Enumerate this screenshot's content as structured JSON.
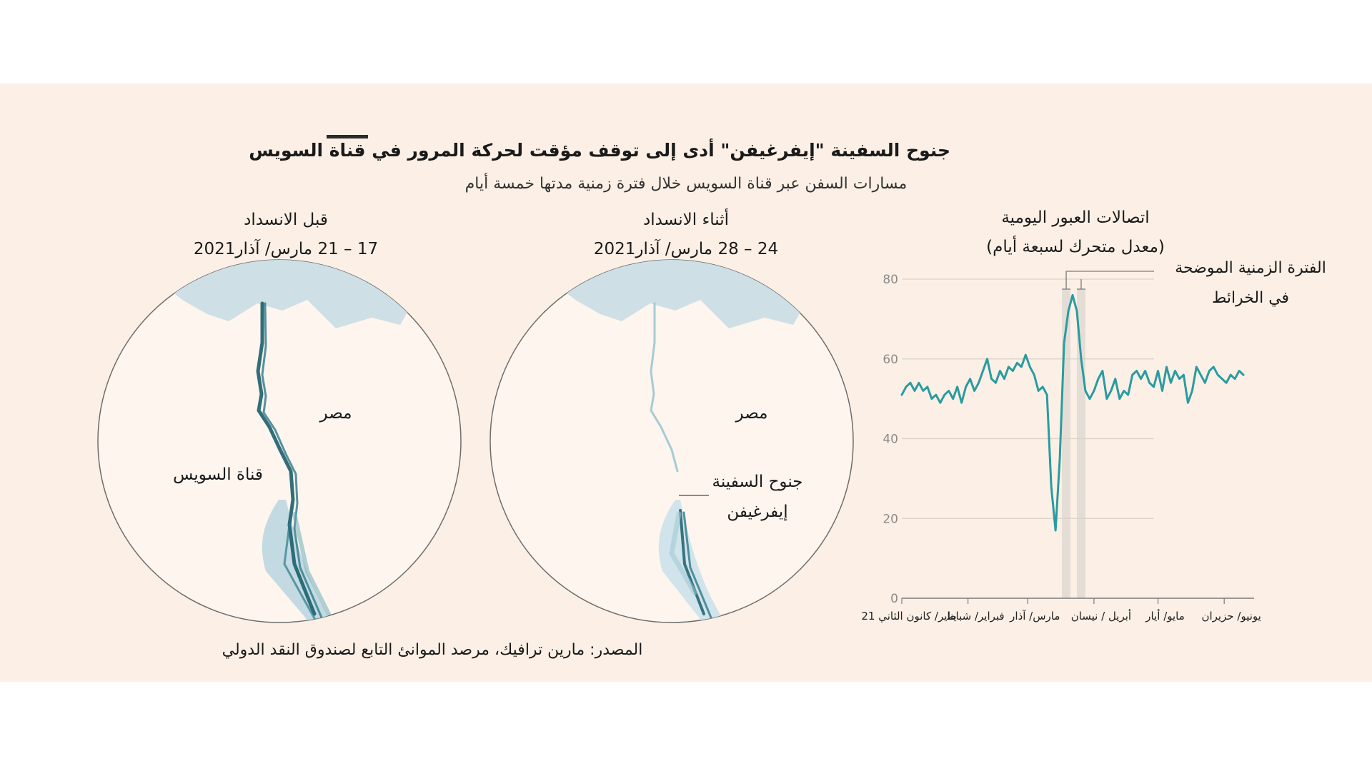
{
  "header": {
    "title": "جنوح السفينة \"إيفرغيفن\" أدى إلى توقف مؤقت لحركة المرور في قناة السويس",
    "subtitle": "مسارات السفن عبر قناة السويس خلال فترة زمنية مدتها خمسة أيام"
  },
  "maps": {
    "before": {
      "heading": "قبل الانسداد",
      "dates": "17 – 21 مارس/ آذار2021",
      "country_label": "مصر",
      "canal_label": "قناة السويس"
    },
    "during": {
      "heading": "أثناء الانسداد",
      "dates": "24 – 28 مارس/ آذار2021",
      "country_label": "مصر",
      "ship_label_line1": "جنوح السفينة",
      "ship_label_line2": "إيفرغيفن"
    }
  },
  "chart_data": {
    "type": "line",
    "title_line1": "اتصالات العبور اليومية",
    "title_line2": "(معدل متحرك لسبعة أيام)",
    "annotation_line1": "الفترة الزمنية الموضحة",
    "annotation_line2": "في الخرائط",
    "ylim": [
      0,
      80
    ],
    "yticks": [
      0,
      20,
      40,
      60,
      80
    ],
    "x_tick_labels": [
      "يناير/ كانون الثاني 21",
      "فبراير/ شباط",
      "مارس/ آذار",
      "أبريل / نيسان",
      "مايو/ أيار",
      "يونيو/ حزيران"
    ],
    "x_tick_days": [
      0,
      31,
      59,
      90,
      120,
      151
    ],
    "x_range_days": [
      0,
      165
    ],
    "highlight_periods_days": [
      [
        75,
        79
      ],
      [
        82,
        86
      ]
    ],
    "series": [
      {
        "color": "#2a9ba0",
        "x_days": [
          0,
          2,
          4,
          6,
          8,
          10,
          12,
          14,
          16,
          18,
          20,
          22,
          24,
          26,
          28,
          30,
          32,
          34,
          36,
          38,
          40,
          42,
          44,
          46,
          48,
          50,
          52,
          54,
          56,
          58,
          60,
          62,
          64,
          66,
          68,
          70,
          72,
          74,
          76,
          78,
          80,
          82,
          84,
          86,
          88,
          90,
          92,
          94,
          96,
          98,
          100,
          102,
          104,
          106,
          108,
          110,
          112,
          114,
          116,
          118,
          120,
          122,
          124,
          126,
          128,
          130,
          132,
          134,
          136,
          138,
          140,
          142,
          144,
          146,
          148,
          150,
          152,
          154,
          156,
          158,
          160
        ],
        "values": [
          51,
          53,
          54,
          52,
          54,
          52,
          53,
          50,
          51,
          49,
          51,
          52,
          50,
          53,
          49,
          53,
          55,
          52,
          54,
          57,
          60,
          55,
          54,
          57,
          55,
          58,
          57,
          59,
          58,
          61,
          58,
          56,
          52,
          53,
          51,
          28,
          17,
          35,
          64,
          72,
          76,
          72,
          60,
          52,
          50,
          52,
          55,
          57,
          50,
          52,
          55,
          50,
          52,
          51,
          56,
          57,
          55,
          57,
          54,
          53,
          57,
          52,
          58,
          54,
          57,
          55,
          56,
          49,
          52,
          58,
          56,
          54,
          57,
          58,
          56,
          55,
          54,
          56,
          55,
          57,
          56
        ]
      }
    ]
  },
  "source": "المصدر: مارين ترافيك، مرصد الموانئ التابع لصندوق النقد الدولي"
}
